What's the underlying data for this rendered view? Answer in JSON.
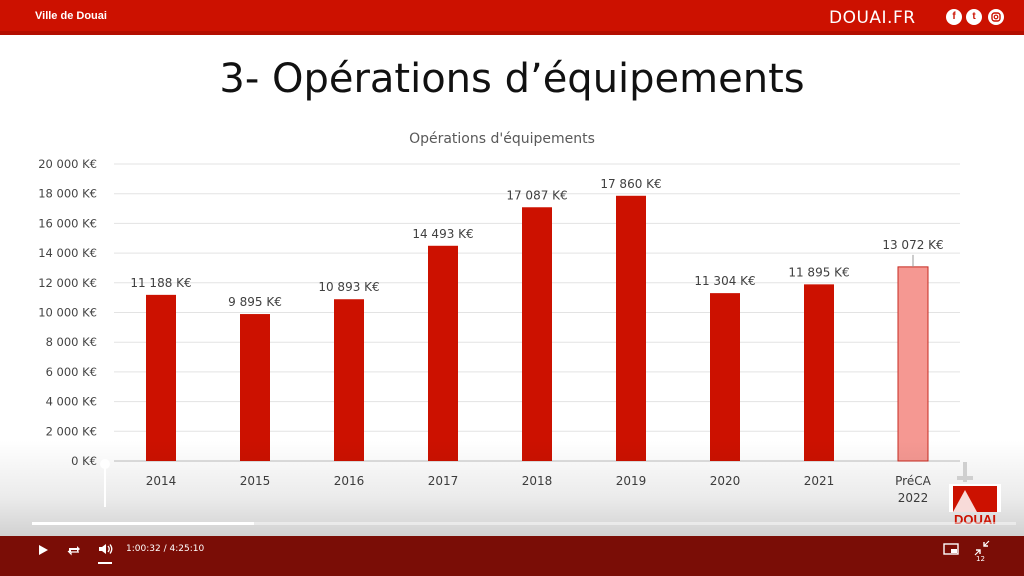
{
  "header": {
    "channel_name": "Ville de Douai",
    "brand": "DOUAI.FR",
    "social_icons": [
      "facebook-icon",
      "twitter-icon",
      "instagram-icon"
    ]
  },
  "slide": {
    "title": "3- Opérations d’équipements"
  },
  "chart_data": {
    "type": "bar",
    "title": "Opérations d'équipements",
    "categories": [
      "2014",
      "2015",
      "2016",
      "2017",
      "2018",
      "2019",
      "2020",
      "2021",
      "PréCA 2022"
    ],
    "values": [
      11188,
      9895,
      10893,
      14493,
      17087,
      17860,
      11304,
      11895,
      13072
    ],
    "value_labels": [
      "11 188 K€",
      "9 895 K€",
      "10 893 K€",
      "14 493 K€",
      "17 087 K€",
      "17 860 K€",
      "11 304 K€",
      "11 895 K€",
      "13 072 K€"
    ],
    "yticks": [
      "0 K€",
      "2 000 K€",
      "4 000 K€",
      "6 000 K€",
      "8 000 K€",
      "10 000 K€",
      "12 000 K€",
      "14 000 K€",
      "16 000 K€",
      "18 000 K€",
      "20 000 K€"
    ],
    "ylim": [
      0,
      20000
    ],
    "grid": true,
    "colors": {
      "bar": "#cc1100",
      "highlight": "#f59892",
      "highlight_border": "#c62a20"
    },
    "highlight_index": 8
  },
  "player": {
    "current_time": "1:00:32",
    "separator": "/",
    "duration": "4:25:10",
    "progress": 0.226,
    "icons": [
      "play-icon",
      "loop-icon",
      "volume-icon",
      "pip-icon",
      "exit-fullscreen-icon"
    ],
    "quality_badge": "12"
  },
  "logo": {
    "text": "DOUAI"
  },
  "colors": {
    "accent": "#cc1100",
    "controls_bg": "#7a0d06"
  }
}
